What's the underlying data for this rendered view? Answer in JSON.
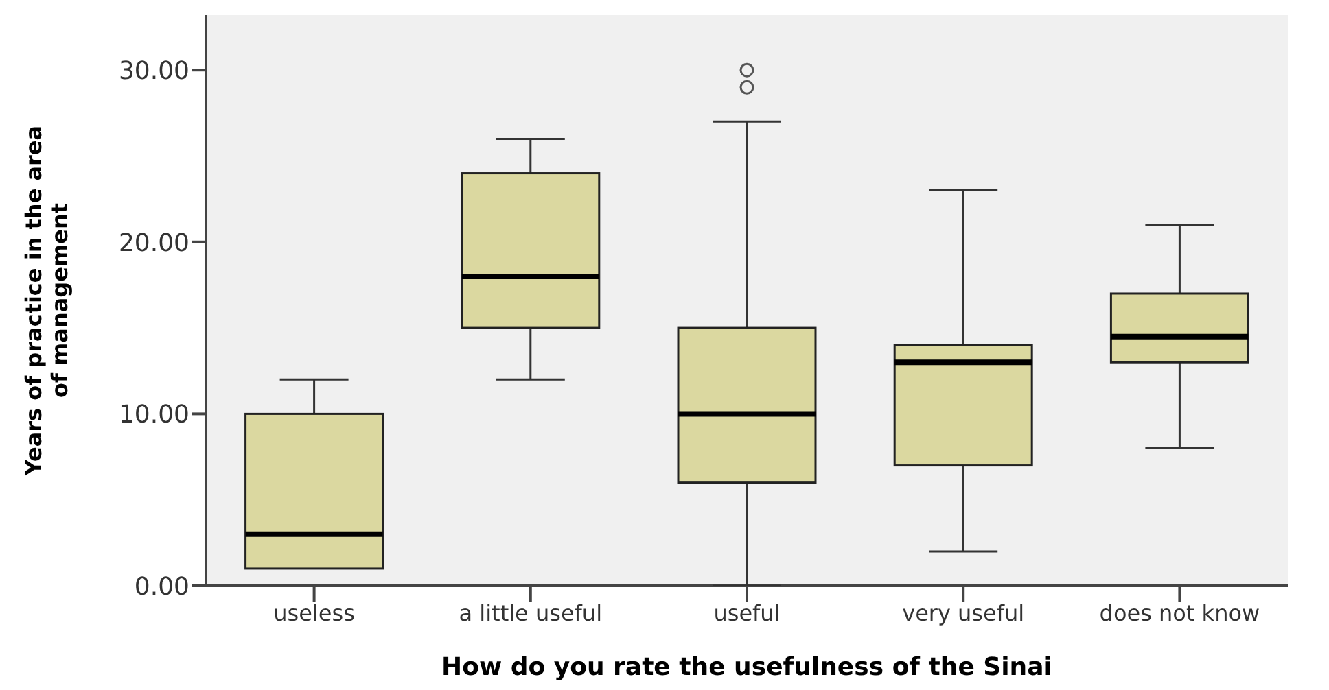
{
  "chart_data": {
    "type": "box",
    "xlabel": "How do you rate the usefulness of the Sinai",
    "ylabel": "Years of practice in the area\nof management",
    "categories": [
      "useless",
      "a little useful",
      "useful",
      "very useful",
      "does not know"
    ],
    "color": "#dbd8a0",
    "ylim": [
      0,
      33.2
    ],
    "yticks": [
      {
        "value": 0,
        "label": "0.00"
      },
      {
        "value": 10,
        "label": "10.00"
      },
      {
        "value": 20,
        "label": "20.00"
      },
      {
        "value": 30,
        "label": "30.00"
      }
    ],
    "boxes": [
      {
        "low": 1,
        "q1": 1,
        "median": 3,
        "q3": 10,
        "high": 12
      },
      {
        "low": 12,
        "q1": 15,
        "median": 18,
        "q3": 24,
        "high": 26
      },
      {
        "low": 0,
        "q1": 6,
        "median": 10,
        "q3": 15,
        "high": 27,
        "outliers": [
          29,
          30
        ]
      },
      {
        "low": 2,
        "q1": 7,
        "median": 13,
        "q3": 14,
        "high": 23
      },
      {
        "low": 8,
        "q1": 13,
        "median": 14.5,
        "q3": 17,
        "high": 21
      }
    ]
  }
}
